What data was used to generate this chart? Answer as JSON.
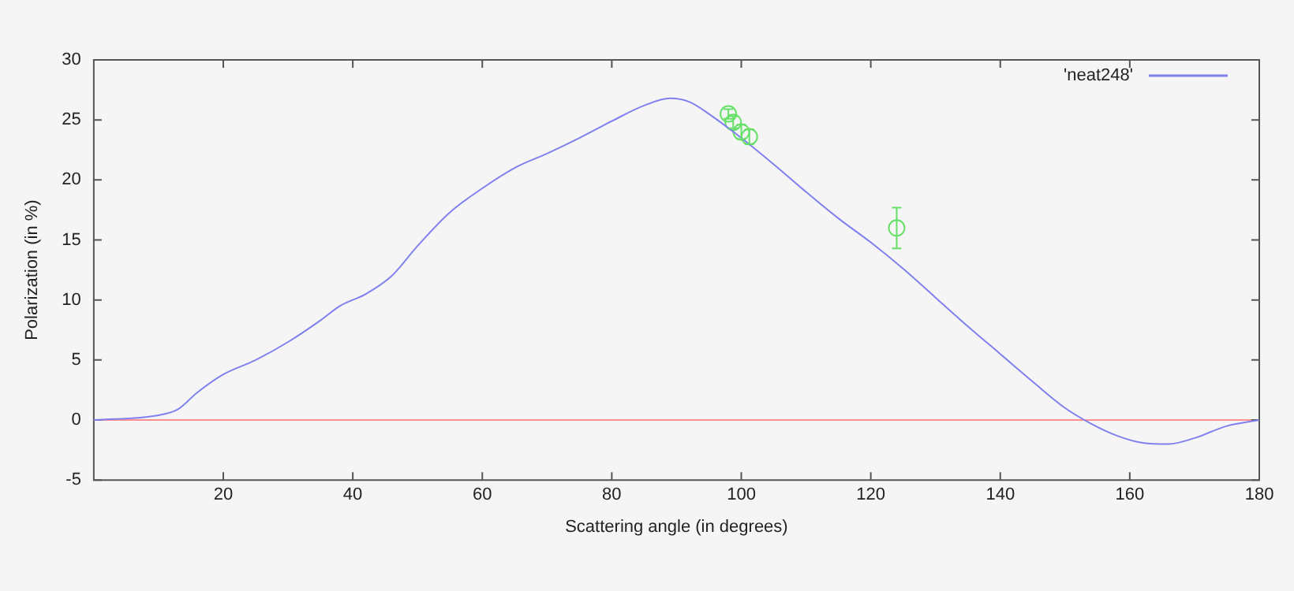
{
  "chart_data": {
    "type": "line",
    "xlabel": "Scattering angle (in degrees)",
    "ylabel": "Polarization (in %)",
    "xlim": [
      0,
      180
    ],
    "xticks": [
      20,
      40,
      60,
      80,
      100,
      120,
      140,
      160,
      180
    ],
    "ylim": [
      -5,
      30
    ],
    "yticks": [
      -5,
      0,
      5,
      10,
      15,
      20,
      25,
      30
    ],
    "grid": false,
    "legend": "top right",
    "ref_lines": [
      {
        "axis": "y",
        "value": 0,
        "color": "#ff9090"
      }
    ],
    "series": [
      {
        "name": "'neat248'",
        "color": "#8080ee",
        "marker": "none",
        "x": [
          0,
          10,
          13,
          16,
          20,
          25,
          30,
          35,
          38,
          42,
          46,
          50,
          55,
          60,
          65,
          70,
          75,
          80,
          85,
          89,
          92,
          95,
          100,
          105,
          110,
          115,
          120,
          125,
          130,
          135,
          140,
          145,
          150,
          154,
          158,
          162,
          166,
          170,
          175,
          180
        ],
        "values": [
          0,
          0.4,
          0.9,
          2.3,
          3.8,
          5.0,
          6.5,
          8.3,
          9.5,
          10.5,
          12.0,
          14.5,
          17.3,
          19.3,
          21.0,
          22.2,
          23.5,
          24.9,
          26.2,
          26.8,
          26.5,
          25.5,
          23.5,
          21.3,
          19.0,
          16.8,
          14.8,
          12.6,
          10.2,
          7.8,
          5.5,
          3.2,
          1.0,
          -0.3,
          -1.3,
          -1.9,
          -2.0,
          -1.5,
          -0.5,
          0
        ]
      },
      {
        "type": "scatter",
        "color": "#66e066",
        "marker": "circle",
        "x": [
          98,
          98.75,
          100,
          101.25,
          124
        ],
        "values": [
          25.5,
          24.8,
          24.0,
          23.6,
          16.0
        ],
        "errors": [
          0.4,
          0.5,
          0.6,
          0.6,
          1.7
        ]
      }
    ]
  }
}
